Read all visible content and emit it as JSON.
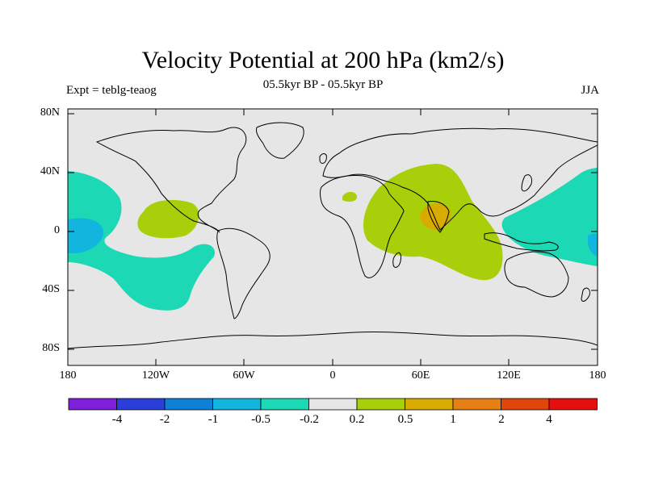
{
  "title": "Velocity Potential at 200 hPa (km2/s)",
  "subtitle": "05.5kyr BP - 05.5kyr BP",
  "left_label": "Expt = teblg-teaog",
  "right_label": "JJA",
  "lat_labels": [
    "80N",
    "40N",
    "0",
    "40S",
    "80S"
  ],
  "lon_labels": [
    "180",
    "120W",
    "60W",
    "0",
    "60E",
    "120E",
    "180"
  ],
  "colorbar": {
    "colors": [
      "#7f1fdc",
      "#2a3fd8",
      "#0f80d8",
      "#12b5de",
      "#1cd8b4",
      "#e6e6e6",
      "#a8cf0a",
      "#d8ab00",
      "#e67f14",
      "#e0450a",
      "#e60f0f"
    ],
    "labels": [
      "-4",
      "-2",
      "-1",
      "-0.5",
      "-0.2",
      "0.2",
      "0.5",
      "1",
      "2",
      "4"
    ]
  },
  "colors": {
    "land_bg": "#e6e6e6",
    "coast": "#000000"
  }
}
